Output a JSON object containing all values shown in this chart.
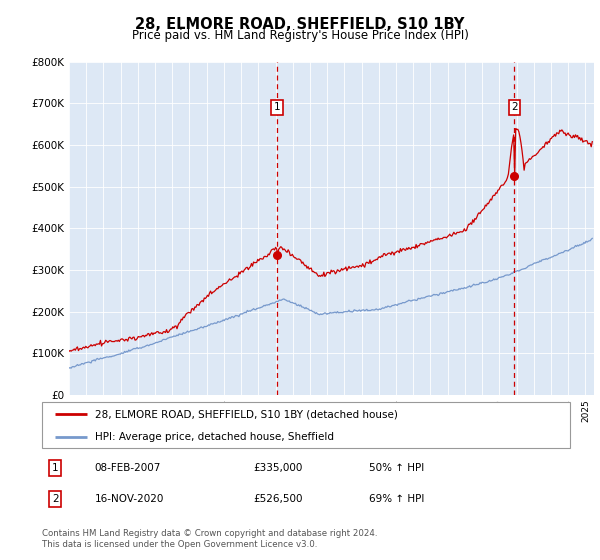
{
  "title": "28, ELMORE ROAD, SHEFFIELD, S10 1BY",
  "subtitle": "Price paid vs. HM Land Registry's House Price Index (HPI)",
  "plot_bg_color": "#dde8f5",
  "ylim": [
    0,
    800000
  ],
  "yticks": [
    0,
    100000,
    200000,
    300000,
    400000,
    500000,
    600000,
    700000,
    800000
  ],
  "xlim_start": 1995.0,
  "xlim_end": 2025.5,
  "red_line_color": "#cc0000",
  "blue_line_color": "#7799cc",
  "marker1_x": 2007.1,
  "marker1_y": 335000,
  "marker2_x": 2020.88,
  "marker2_y": 526500,
  "vline1_x": 2007.1,
  "vline2_x": 2020.88,
  "legend_label_red": "28, ELMORE ROAD, SHEFFIELD, S10 1BY (detached house)",
  "legend_label_blue": "HPI: Average price, detached house, Sheffield",
  "annotation1_label": "1",
  "annotation2_label": "2",
  "ann_y": 690000,
  "table_rows": [
    [
      "1",
      "08-FEB-2007",
      "£335,000",
      "50% ↑ HPI"
    ],
    [
      "2",
      "16-NOV-2020",
      "£526,500",
      "69% ↑ HPI"
    ]
  ],
  "footer_text": "Contains HM Land Registry data © Crown copyright and database right 2024.\nThis data is licensed under the Open Government Licence v3.0."
}
